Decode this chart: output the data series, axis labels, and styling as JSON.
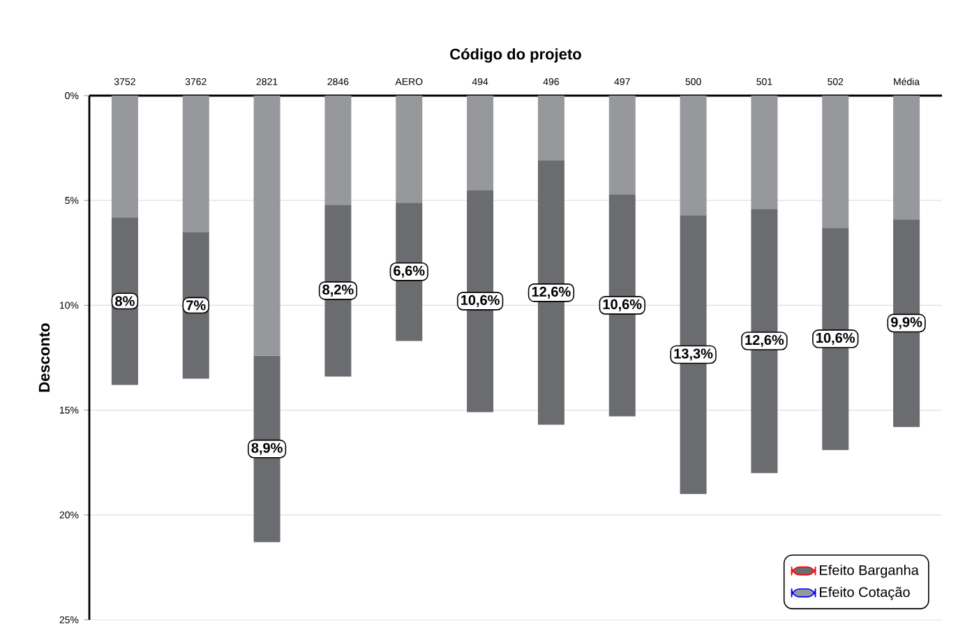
{
  "chart_data": {
    "type": "bar",
    "stacked": true,
    "xlabel": "Código do projeto",
    "ylabel": "Desconto",
    "categories": [
      "3752",
      "3762",
      "2821",
      "2846",
      "AERO",
      "494",
      "496",
      "497",
      "500",
      "501",
      "502",
      "Média"
    ],
    "series": [
      {
        "name": "Efeito Cotação",
        "color": "#97989b",
        "values": [
          5.8,
          6.5,
          12.4,
          5.2,
          5.1,
          4.5,
          3.1,
          4.7,
          5.7,
          5.4,
          6.3,
          5.9
        ]
      },
      {
        "name": "Efeito Barganha",
        "color": "#6b6c70",
        "values": [
          8,
          7,
          8.9,
          8.2,
          6.6,
          10.6,
          12.6,
          10.6,
          13.3,
          12.6,
          10.6,
          9.9
        ],
        "value_labels": [
          "8%",
          "7%",
          "8,9%",
          "8,2%",
          "6,6%",
          "10,6%",
          "12,6%",
          "10,6%",
          "13,3%",
          "12,6%",
          "10,6%",
          "9,9%"
        ]
      }
    ],
    "ylim": [
      25,
      0
    ],
    "yticks": [
      {
        "value": 0,
        "label": "0%"
      },
      {
        "value": 5,
        "label": "5%"
      },
      {
        "value": 10,
        "label": "10%"
      },
      {
        "value": 15,
        "label": "15%"
      },
      {
        "value": 20,
        "label": "20%"
      },
      {
        "value": 25,
        "label": "25%"
      }
    ],
    "grid": "y",
    "legend": "bottom right"
  }
}
